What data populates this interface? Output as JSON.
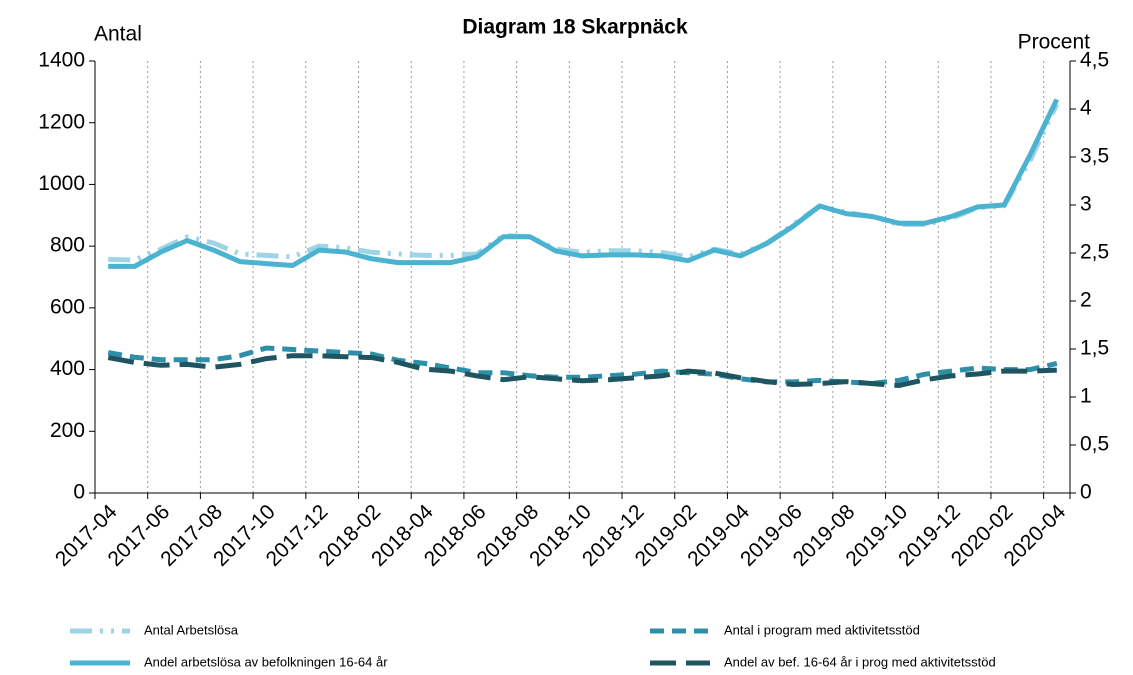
{
  "chart_data": {
    "type": "line",
    "title": "Diagram 18 Skarpnäck",
    "ylabel": "Antal",
    "y2label": "Procent",
    "categories": [
      "2017-04",
      null,
      "2017-06",
      null,
      "2017-08",
      null,
      "2017-10",
      null,
      "2017-12",
      null,
      "2018-02",
      null,
      "2018-04",
      null,
      "2018-06",
      null,
      "2018-08",
      null,
      "2018-10",
      null,
      "2018-12",
      null,
      "2019-02",
      null,
      "2019-04",
      null,
      "2019-06",
      null,
      "2019-08",
      null,
      "2019-10",
      null,
      "2019-12",
      null,
      "2020-02",
      null,
      "2020-04"
    ],
    "ylim": [
      0,
      1400
    ],
    "yticks": [
      0,
      200,
      400,
      600,
      800,
      1000,
      1200,
      1400
    ],
    "y2lim": [
      0,
      4.5
    ],
    "y2ticks": [
      0,
      {
        "value": 0.5,
        "label": "0,5"
      },
      1,
      {
        "value": 1.5,
        "label": "1,5"
      },
      2,
      {
        "value": 2.5,
        "label": "2,5"
      },
      3,
      {
        "value": 3.5,
        "label": "3,5"
      },
      4,
      {
        "value": 4.5,
        "label": "4,5"
      }
    ],
    "grid": true,
    "series": [
      {
        "name": "Antal Arbetslösa",
        "color": "#9fd3e6",
        "dash": "dashdot",
        "values": [
          757,
          755,
          790,
          830,
          810,
          775,
          770,
          765,
          800,
          795,
          780,
          775,
          770,
          770,
          775,
          835,
          830,
          790,
          780,
          785,
          785,
          780,
          765,
          790,
          775,
          810,
          870,
          930,
          910,
          895,
          870,
          870,
          890,
          925,
          930,
          1080,
          1260
        ]
      },
      {
        "name": "Antal i program med aktivitetsstöd",
        "color": "#2d8fa8",
        "dash": "dashed",
        "values": [
          455,
          440,
          432,
          432,
          432,
          445,
          470,
          465,
          460,
          455,
          450,
          430,
          420,
          405,
          390,
          390,
          380,
          375,
          375,
          380,
          385,
          395,
          390,
          385,
          370,
          360,
          360,
          365,
          360,
          355,
          365,
          385,
          395,
          405,
          400,
          400,
          420
        ]
      },
      {
        "name": "Andel arbetslösa av befolkningen 16-64 år",
        "color": "#4bb3d0",
        "dash": "solid",
        "axis": "y2",
        "values": [
          2.36,
          2.36,
          2.51,
          2.63,
          2.53,
          2.41,
          2.39,
          2.37,
          2.53,
          2.51,
          2.44,
          2.4,
          2.4,
          2.4,
          2.46,
          2.67,
          2.67,
          2.52,
          2.47,
          2.48,
          2.48,
          2.47,
          2.42,
          2.53,
          2.47,
          2.6,
          2.78,
          2.99,
          2.91,
          2.88,
          2.81,
          2.81,
          2.88,
          2.98,
          3.0,
          3.53,
          4.1
        ]
      },
      {
        "name": "Andel av bef. 16-64 år i prog med aktivitetsstöd",
        "color": "#1f5560",
        "dash": "longdash",
        "axis": "y2",
        "values": [
          1.41,
          1.36,
          1.33,
          1.34,
          1.31,
          1.34,
          1.4,
          1.43,
          1.43,
          1.42,
          1.41,
          1.36,
          1.29,
          1.27,
          1.22,
          1.18,
          1.21,
          1.19,
          1.17,
          1.18,
          1.2,
          1.22,
          1.27,
          1.25,
          1.2,
          1.16,
          1.13,
          1.14,
          1.16,
          1.14,
          1.12,
          1.18,
          1.22,
          1.24,
          1.27,
          1.27,
          1.28
        ]
      }
    ]
  }
}
